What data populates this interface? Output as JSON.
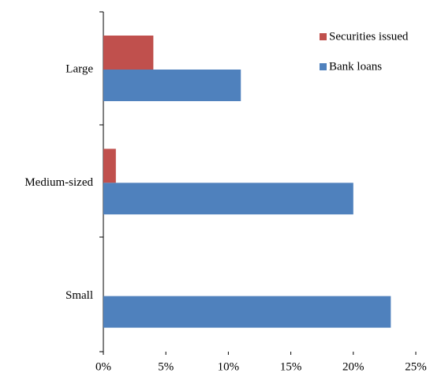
{
  "chart_data": {
    "type": "hbar",
    "categories": [
      "Large",
      "Medium-sized",
      "Small"
    ],
    "series": [
      {
        "name": "Securities issued",
        "color": "#c0504d",
        "values": [
          4,
          1,
          0
        ]
      },
      {
        "name": "Bank loans",
        "color": "#4f81bd",
        "values": [
          11,
          20,
          23
        ]
      }
    ],
    "xlim": [
      0,
      25
    ],
    "xticks": [
      {
        "value": 0,
        "label": "0%"
      },
      {
        "value": 5,
        "label": "5%"
      },
      {
        "value": 10,
        "label": "10%"
      },
      {
        "value": 15,
        "label": "15%"
      },
      {
        "value": 20,
        "label": "20%"
      },
      {
        "value": 25,
        "label": "25%"
      }
    ],
    "legend": "top-right"
  }
}
